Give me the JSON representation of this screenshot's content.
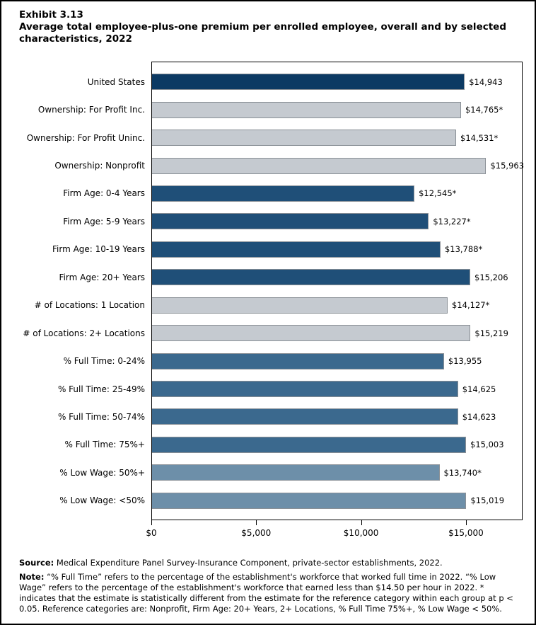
{
  "title": {
    "exhibit": "Exhibit 3.13",
    "heading": "Average total employee-plus-one premium per enrolled employee, overall and by selected characteristics, 2022"
  },
  "chart_data": {
    "type": "bar",
    "orientation": "horizontal",
    "title": "Average total employee-plus-one premium per enrolled employee, overall and by selected characteristics, 2022",
    "xlabel": "",
    "ylabel": "",
    "xlim": [
      0,
      17700
    ],
    "grid": false,
    "x_ticks": [
      {
        "value": 0,
        "label": "$0"
      },
      {
        "value": 5000,
        "label": "$5,000"
      },
      {
        "value": 10000,
        "label": "$10,000"
      },
      {
        "value": 15000,
        "label": "$15,000"
      }
    ],
    "bars": [
      {
        "category": "United States",
        "value": 14943,
        "label": "$14,943",
        "group": "overall"
      },
      {
        "category": "Ownership: For Profit Inc.",
        "value": 14765,
        "label": "$14,765*",
        "group": "ownership"
      },
      {
        "category": "Ownership: For Profit Uninc.",
        "value": 14531,
        "label": "$14,531*",
        "group": "ownership"
      },
      {
        "category": "Ownership: Nonprofit",
        "value": 15963,
        "label": "$15,963",
        "group": "ownership"
      },
      {
        "category": "Firm Age: 0-4 Years",
        "value": 12545,
        "label": "$12,545*",
        "group": "firm_age"
      },
      {
        "category": "Firm Age: 5-9 Years",
        "value": 13227,
        "label": "$13,227*",
        "group": "firm_age"
      },
      {
        "category": "Firm Age: 10-19 Years",
        "value": 13788,
        "label": "$13,788*",
        "group": "firm_age"
      },
      {
        "category": "Firm Age: 20+ Years",
        "value": 15206,
        "label": "$15,206",
        "group": "firm_age"
      },
      {
        "category": "# of Locations: 1 Location",
        "value": 14127,
        "label": "$14,127*",
        "group": "locations"
      },
      {
        "category": "# of Locations: 2+ Locations",
        "value": 15219,
        "label": "$15,219",
        "group": "locations"
      },
      {
        "category": "% Full Time: 0-24%",
        "value": 13955,
        "label": "$13,955",
        "group": "full_time"
      },
      {
        "category": "% Full Time: 25-49%",
        "value": 14625,
        "label": "$14,625",
        "group": "full_time"
      },
      {
        "category": "% Full Time: 50-74%",
        "value": 14623,
        "label": "$14,623",
        "group": "full_time"
      },
      {
        "category": "% Full Time: 75%+",
        "value": 15003,
        "label": "$15,003",
        "group": "full_time"
      },
      {
        "category": "% Low Wage: 50%+",
        "value": 13740,
        "label": "$13,740*",
        "group": "low_wage"
      },
      {
        "category": "% Low Wage: <50%",
        "value": 15019,
        "label": "$15,019",
        "group": "low_wage"
      }
    ],
    "group_colors": {
      "overall": "#0c3a63",
      "ownership": "#c5cad0",
      "firm_age": "#1f4f78",
      "locations": "#c5cad0",
      "full_time": "#3b698e",
      "low_wage": "#6d8fa9"
    },
    "bar_border_color": "#8a9096",
    "axis_color": "#000000"
  },
  "footer": {
    "source_label": "Source:",
    "source_text": " Medical Expenditure Panel Survey-Insurance Component, private-sector establishments, 2022.",
    "note_label": "Note:",
    "note_text": " “% Full Time” refers to the percentage of the establishment's workforce that worked full time in 2022. “% Low Wage” refers to the percentage of the establishment's workforce that earned less than $14.50 per hour in 2022. * indicates that the estimate is statistically different from the estimate for the reference category within each group at p < 0.05.  Reference categories are: Nonprofit, Firm Age: 20+ Years, 2+ Locations, % Full Time 75%+, % Low Wage < 50%."
  }
}
